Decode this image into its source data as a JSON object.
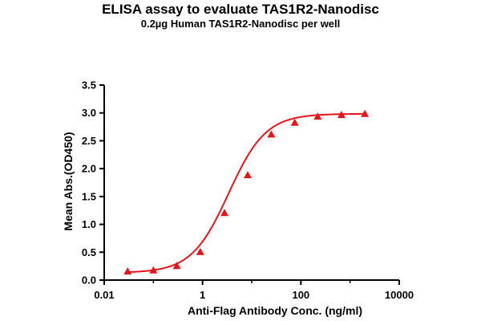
{
  "chart_data": {
    "type": "scatter",
    "title": "ELISA assay to evaluate TAS1R2-Nanodisc",
    "subtitle": "0.2µg Human TAS1R2-Nanodisc per well",
    "xlabel": "Anti-Flag Antibody Conc. (ng/ml)",
    "ylabel": "Mean Abs.(OD450)",
    "x_scale": "log",
    "xlim": [
      0.01,
      10000
    ],
    "ylim": [
      0,
      3.5
    ],
    "x_ticks": [
      0.01,
      1,
      100,
      10000
    ],
    "x_tick_labels": [
      "0.01",
      "1",
      "100",
      "10000"
    ],
    "y_ticks": [
      0.0,
      0.5,
      1.0,
      1.5,
      2.0,
      2.5,
      3.0,
      3.5
    ],
    "y_tick_labels": [
      "0.0",
      "0.5",
      "1.0",
      "1.5",
      "2.0",
      "2.5",
      "3.0",
      "3.5"
    ],
    "grid": false,
    "legend": "none",
    "series": [
      {
        "color": "#e8141b",
        "marker": "triangle",
        "fit": "sigmoidal",
        "x": [
          0.03,
          0.1,
          0.3,
          0.9,
          2.8,
          8.3,
          25,
          75,
          220,
          670,
          2000
        ],
        "y": [
          0.15,
          0.17,
          0.25,
          0.5,
          1.2,
          1.88,
          2.61,
          2.82,
          2.93,
          2.96,
          2.98
        ]
      }
    ]
  }
}
